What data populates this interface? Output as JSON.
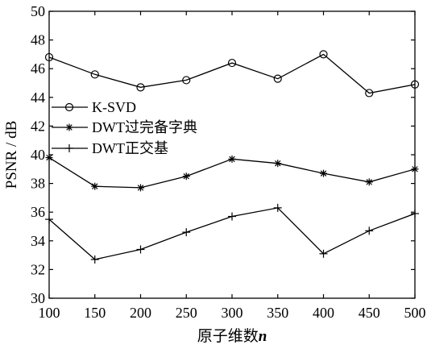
{
  "chart_data": {
    "type": "line",
    "xlabel": "原子维数",
    "xlabel_var": "n",
    "ylabel": "PSNR / dB",
    "xlim": [
      100,
      500
    ],
    "ylim": [
      30,
      50
    ],
    "x_ticks": [
      100,
      150,
      200,
      250,
      300,
      350,
      400,
      450,
      500
    ],
    "y_ticks": [
      30,
      32,
      34,
      36,
      38,
      40,
      42,
      44,
      46,
      48,
      50
    ],
    "grid": false,
    "legend_position": "left",
    "x": [
      100,
      150,
      200,
      250,
      300,
      350,
      400,
      450,
      500
    ],
    "series": [
      {
        "name": "K-SVD",
        "marker": "circle",
        "values": [
          46.8,
          45.6,
          44.7,
          45.2,
          46.4,
          45.3,
          47.0,
          44.3,
          44.9
        ]
      },
      {
        "name": "DWT过完备字典",
        "marker": "asterisk",
        "values": [
          39.8,
          37.8,
          37.7,
          38.5,
          39.7,
          39.4,
          38.7,
          38.1,
          39.0
        ]
      },
      {
        "name": "DWT正交基",
        "marker": "plus",
        "values": [
          35.5,
          32.7,
          33.4,
          34.6,
          35.7,
          36.3,
          33.1,
          34.7,
          35.9
        ]
      }
    ]
  }
}
